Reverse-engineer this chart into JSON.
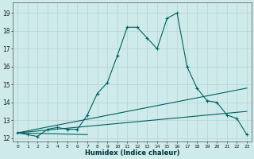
{
  "xlabel": "Humidex (Indice chaleur)",
  "background_color": "#ceeaea",
  "grid_color": "#b8d8d8",
  "line_color": "#006060",
  "xlim": [
    -0.5,
    23.5
  ],
  "ylim": [
    11.8,
    19.6
  ],
  "yticks": [
    12,
    13,
    14,
    15,
    16,
    17,
    18,
    19
  ],
  "xticks": [
    0,
    1,
    2,
    3,
    4,
    5,
    6,
    7,
    8,
    9,
    10,
    11,
    12,
    13,
    14,
    15,
    16,
    17,
    18,
    19,
    20,
    21,
    22,
    23
  ],
  "xtick_labels": [
    "0",
    "1",
    "2",
    "3",
    "4",
    "5",
    "6",
    "7",
    "8",
    "9",
    "10",
    "11",
    "12",
    "13",
    "14",
    "15",
    "16",
    "17",
    "18",
    "19",
    "20",
    "21",
    "22",
    "23"
  ],
  "series_main": {
    "x": [
      0,
      1,
      2,
      3,
      4,
      5,
      6,
      7,
      8,
      9,
      10,
      11,
      12,
      13,
      14,
      15,
      16,
      17,
      18,
      19,
      20,
      21,
      22,
      23
    ],
    "y": [
      12.3,
      12.2,
      12.1,
      12.5,
      12.6,
      12.5,
      12.5,
      13.3,
      14.5,
      15.1,
      16.6,
      18.2,
      18.2,
      17.6,
      17.0,
      18.7,
      19.0,
      16.0,
      14.8,
      14.1,
      14.0,
      13.3,
      13.1,
      12.2
    ]
  },
  "series_lines": [
    {
      "x": [
        0,
        23
      ],
      "y": [
        12.3,
        14.8
      ]
    },
    {
      "x": [
        0,
        23
      ],
      "y": [
        12.3,
        13.5
      ]
    },
    {
      "x": [
        0,
        7
      ],
      "y": [
        12.3,
        12.2
      ]
    }
  ]
}
